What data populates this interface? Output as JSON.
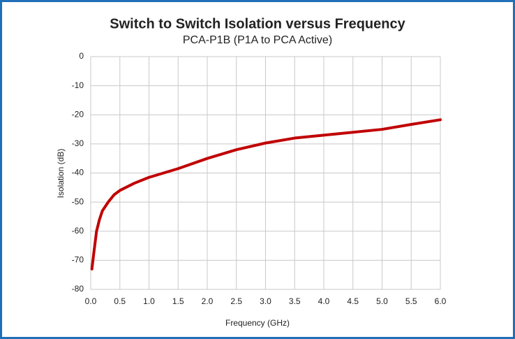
{
  "chart_data": {
    "type": "line",
    "title": "Switch to Switch Isolation versus Frequency",
    "subtitle": "PCA-P1B (P1A to PCA Active)",
    "x_label": "Frequency (GHz)",
    "y_label": "Isolation (dB)",
    "x": [
      0.02,
      0.05,
      0.1,
      0.15,
      0.2,
      0.3,
      0.4,
      0.5,
      0.75,
      1.0,
      1.5,
      2.0,
      2.5,
      3.0,
      3.5,
      4.0,
      4.5,
      5.0,
      5.5,
      6.0
    ],
    "series": [
      {
        "name": "Isolation",
        "color": "#c00000",
        "values": [
          -73,
          -68,
          -60,
          -56,
          -53,
          -50,
          -47.5,
          -46,
          -43.5,
          -41.5,
          -38.5,
          -35,
          -32,
          -29.7,
          -28,
          -27,
          -26,
          -25,
          -23.3,
          -21.7
        ]
      }
    ],
    "xlim": [
      0,
      6
    ],
    "xticks": [
      {
        "value": 0,
        "label": "0.0"
      },
      0.5,
      {
        "value": 1,
        "label": "1.0"
      },
      1.5,
      {
        "value": 2,
        "label": "2.0"
      },
      2.5,
      {
        "value": 3,
        "label": "3.0"
      },
      3.5,
      {
        "value": 4,
        "label": "4.0"
      },
      4.5,
      {
        "value": 5,
        "label": "5.0"
      },
      5.5,
      {
        "value": 6,
        "label": "6.0"
      }
    ],
    "ylim": [
      -80,
      0
    ],
    "yticks": [
      -80,
      -70,
      -60,
      -50,
      -40,
      -30,
      -20,
      -10,
      0
    ],
    "grid": true
  }
}
